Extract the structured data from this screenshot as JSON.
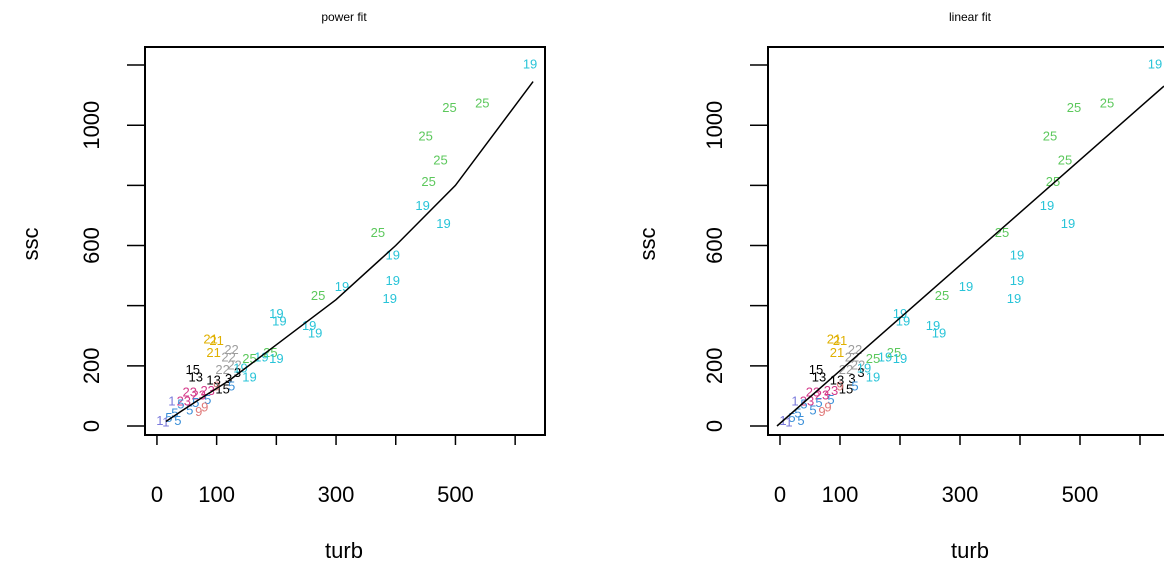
{
  "chart_data": [
    {
      "type": "scatter",
      "title": "power fit",
      "xlabel": "turb",
      "ylabel": "ssc",
      "xlim": [
        -20,
        650
      ],
      "ylim": [
        -30,
        1260
      ],
      "xticks": [
        0,
        100,
        200,
        300,
        400,
        500,
        600
      ],
      "xtick_labels": [
        "0",
        "100",
        "",
        "300",
        "",
        "500",
        ""
      ],
      "yticks": [
        0,
        200,
        400,
        600,
        800,
        1000,
        1200
      ],
      "ytick_labels": [
        "0",
        "200",
        "",
        "600",
        "",
        "1000",
        ""
      ],
      "grid": false,
      "fit": {
        "kind": "power",
        "points": [
          [
            15,
            15
          ],
          [
            40,
            48
          ],
          [
            80,
            100
          ],
          [
            120,
            150
          ],
          [
            200,
            270
          ],
          [
            300,
            420
          ],
          [
            400,
            600
          ],
          [
            500,
            800
          ],
          [
            630,
            1145
          ]
        ]
      }
    },
    {
      "type": "scatter",
      "title": "linear fit",
      "xlabel": "turb",
      "ylabel": "ssc",
      "xlim": [
        -20,
        650
      ],
      "ylim": [
        -30,
        1260
      ],
      "xticks": [
        0,
        100,
        200,
        300,
        400,
        500,
        600
      ],
      "xtick_labels": [
        "0",
        "100",
        "",
        "300",
        "",
        "500",
        ""
      ],
      "yticks": [
        0,
        200,
        400,
        600,
        800,
        1000,
        1200
      ],
      "ytick_labels": [
        "0",
        "200",
        "",
        "600",
        "",
        "1000",
        ""
      ],
      "grid": false,
      "fit": {
        "kind": "linear",
        "points": [
          [
            -5,
            0
          ],
          [
            640,
            1130
          ]
        ]
      }
    }
  ],
  "series_colors": {
    "19": "#29c4d8",
    "25": "#5cc85c",
    "21": "#e0b000",
    "15": "#000000",
    "13": "#000000",
    "3": "#000000",
    "22": "#9e9e9e",
    "23": "#d43a8a",
    "5": "#3a8fd8",
    "1": "#7a7adc",
    "9": "#e07a7a"
  },
  "points": [
    {
      "label": "19",
      "x": 625,
      "y": 1200
    },
    {
      "label": "25",
      "x": 545,
      "y": 1070
    },
    {
      "label": "25",
      "x": 490,
      "y": 1055
    },
    {
      "label": "25",
      "x": 450,
      "y": 960
    },
    {
      "label": "25",
      "x": 475,
      "y": 880
    },
    {
      "label": "25",
      "x": 455,
      "y": 810
    },
    {
      "label": "19",
      "x": 445,
      "y": 730
    },
    {
      "label": "19",
      "x": 480,
      "y": 670
    },
    {
      "label": "25",
      "x": 370,
      "y": 640
    },
    {
      "label": "19",
      "x": 395,
      "y": 565
    },
    {
      "label": "19",
      "x": 395,
      "y": 480
    },
    {
      "label": "19",
      "x": 390,
      "y": 420
    },
    {
      "label": "19",
      "x": 310,
      "y": 460
    },
    {
      "label": "25",
      "x": 270,
      "y": 430
    },
    {
      "label": "19",
      "x": 200,
      "y": 370
    },
    {
      "label": "19",
      "x": 205,
      "y": 345
    },
    {
      "label": "19",
      "x": 255,
      "y": 330
    },
    {
      "label": "19",
      "x": 265,
      "y": 305
    },
    {
      "label": "25",
      "x": 190,
      "y": 240
    },
    {
      "label": "19",
      "x": 175,
      "y": 225
    },
    {
      "label": "19",
      "x": 200,
      "y": 220
    },
    {
      "label": "19",
      "x": 155,
      "y": 160
    },
    {
      "label": "25",
      "x": 155,
      "y": 220
    },
    {
      "label": "21",
      "x": 90,
      "y": 285
    },
    {
      "label": "21",
      "x": 100,
      "y": 280
    },
    {
      "label": "21",
      "x": 95,
      "y": 240
    },
    {
      "label": "22",
      "x": 125,
      "y": 250
    },
    {
      "label": "22",
      "x": 120,
      "y": 225
    },
    {
      "label": "22",
      "x": 130,
      "y": 200
    },
    {
      "label": "15",
      "x": 60,
      "y": 185
    },
    {
      "label": "13",
      "x": 65,
      "y": 160
    },
    {
      "label": "3",
      "x": 135,
      "y": 175
    },
    {
      "label": "3",
      "x": 120,
      "y": 155
    },
    {
      "label": "15",
      "x": 110,
      "y": 120
    },
    {
      "label": "5",
      "x": 85,
      "y": 85
    },
    {
      "label": "9",
      "x": 100,
      "y": 130
    },
    {
      "label": "23",
      "x": 55,
      "y": 110
    },
    {
      "label": "23",
      "x": 70,
      "y": 100
    },
    {
      "label": "23",
      "x": 45,
      "y": 80
    },
    {
      "label": "9",
      "x": 80,
      "y": 60
    },
    {
      "label": "9",
      "x": 70,
      "y": 45
    },
    {
      "label": "5",
      "x": 40,
      "y": 70
    },
    {
      "label": "5",
      "x": 55,
      "y": 50
    },
    {
      "label": "5",
      "x": 30,
      "y": 40
    },
    {
      "label": "5",
      "x": 20,
      "y": 25
    },
    {
      "label": "5",
      "x": 35,
      "y": 15
    },
    {
      "label": "1",
      "x": 25,
      "y": 80
    },
    {
      "label": "1",
      "x": 5,
      "y": 15
    },
    {
      "label": "1",
      "x": 15,
      "y": 10
    },
    {
      "label": "13",
      "x": 95,
      "y": 150
    },
    {
      "label": "22",
      "x": 110,
      "y": 185
    },
    {
      "label": "5",
      "x": 65,
      "y": 75
    },
    {
      "label": "23",
      "x": 85,
      "y": 115
    },
    {
      "label": "19",
      "x": 140,
      "y": 190
    },
    {
      "label": "5",
      "x": 125,
      "y": 130
    }
  ]
}
